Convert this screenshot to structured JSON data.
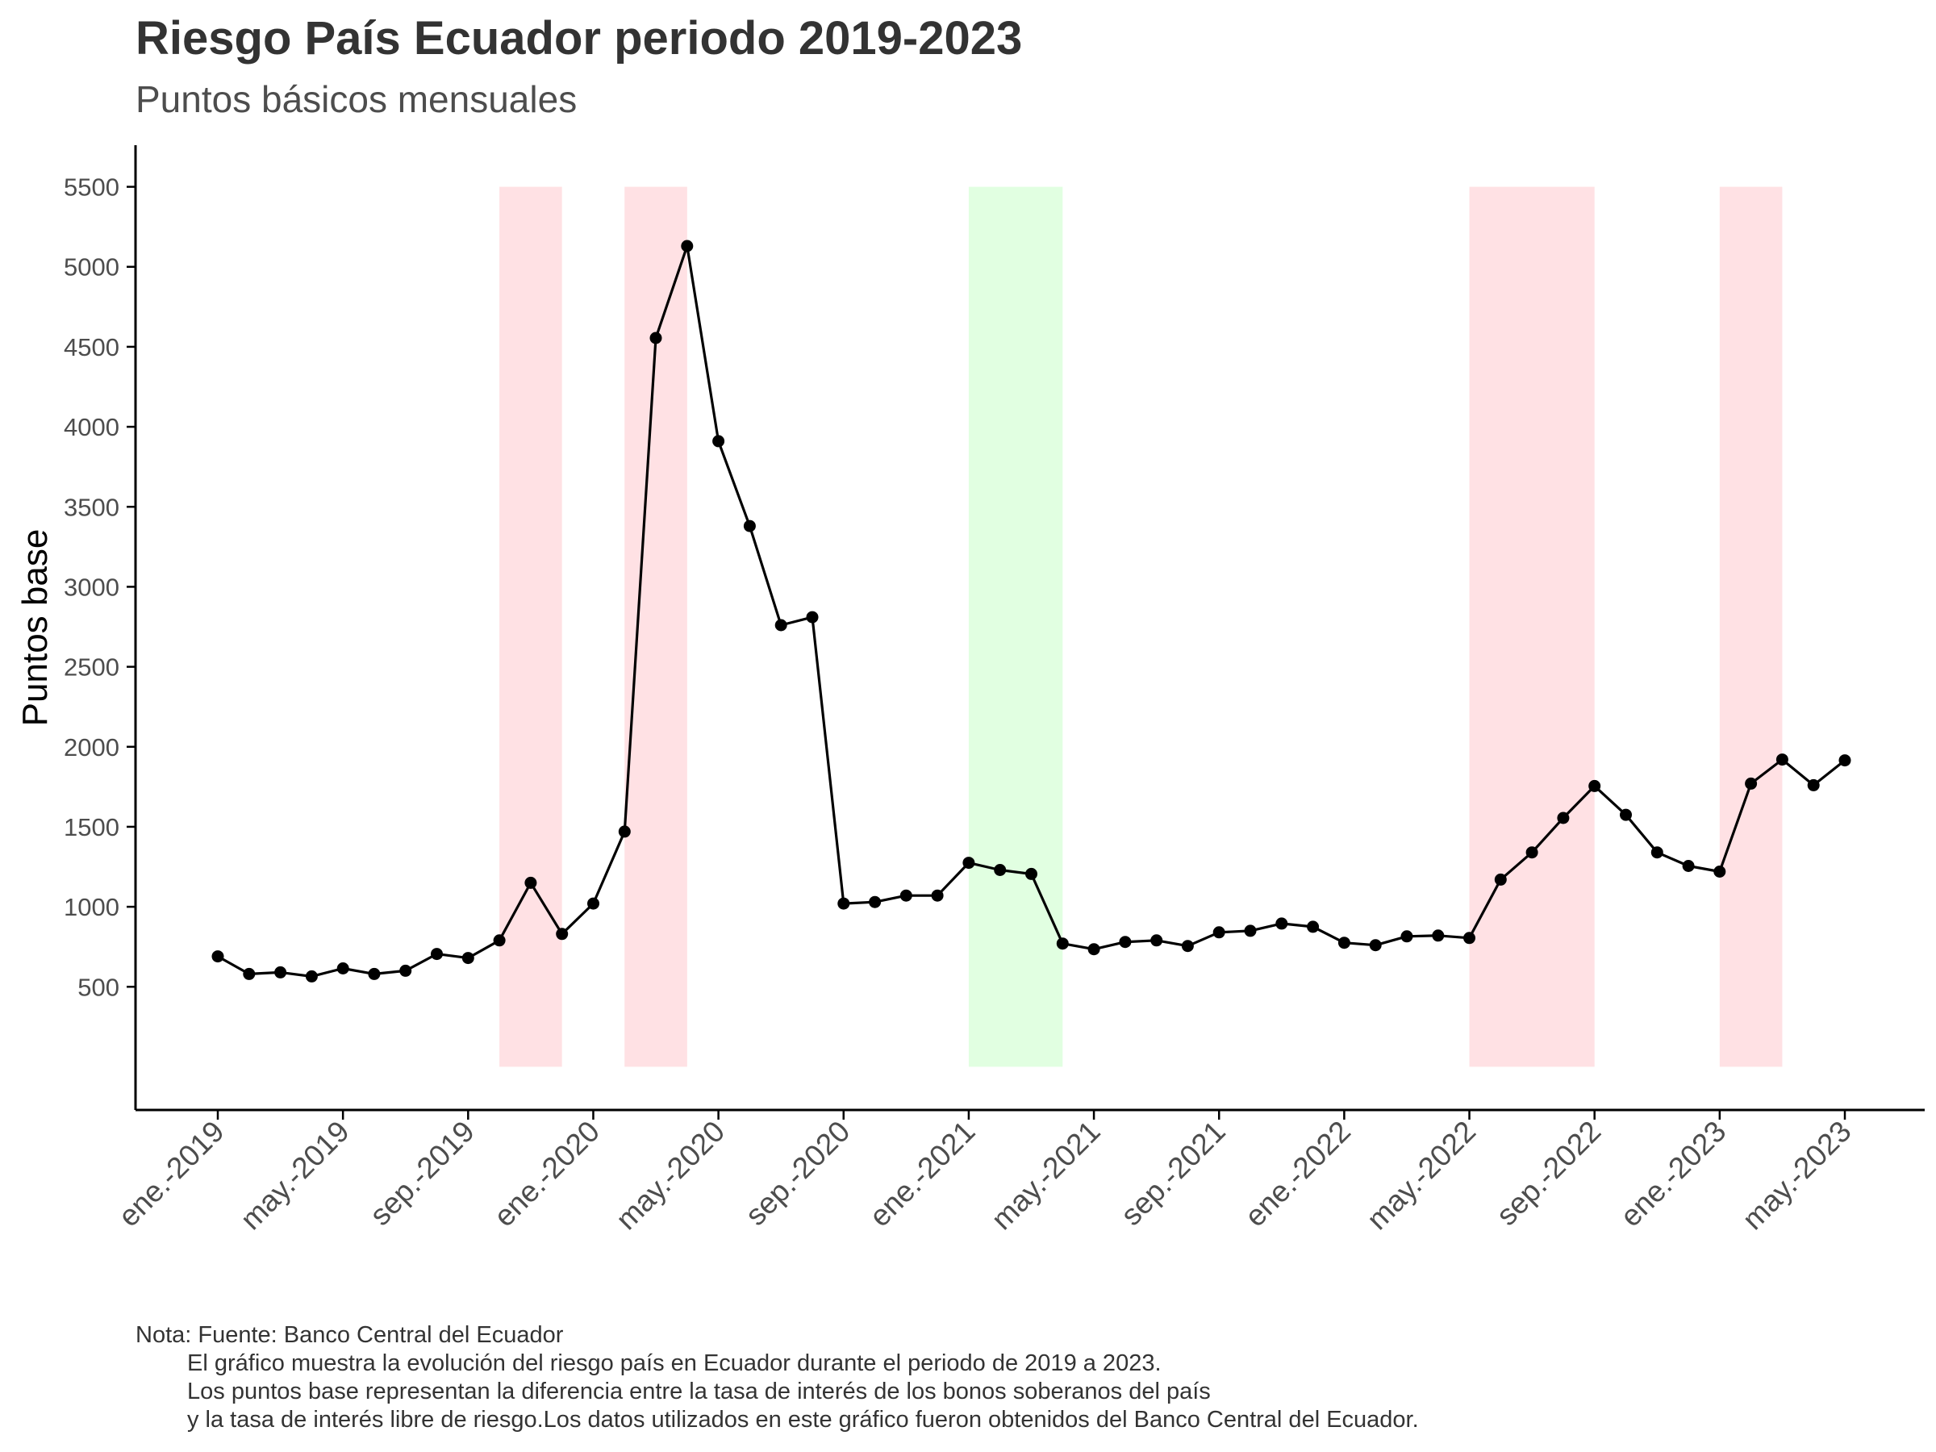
{
  "title": "Riesgo País Ecuador periodo 2019-2023",
  "subtitle": "Puntos básicos mensuales",
  "caption": {
    "line1": "Nota: Fuente: Banco Central del Ecuador",
    "line2": "El gráfico muestra la evolución del riesgo país en Ecuador durante el periodo de 2019 a 2023.",
    "line3": "Los puntos base representan la diferencia entre la tasa de interés de los bonos soberanos del país",
    "line4": "y la tasa de interés libre de riesgo.Los datos utilizados en este gráfico fueron obtenidos del Banco Central del Ecuador."
  },
  "colors": {
    "line": "#000000",
    "point": "#000000",
    "shade_red": "#ffe1e4",
    "shade_green": "#e1ffe1",
    "axis": "#000000",
    "tick_label": "#4d4d4d"
  },
  "chart_data": {
    "type": "line",
    "title": "Riesgo País Ecuador periodo 2019-2023",
    "subtitle": "Puntos básicos mensuales",
    "xlabel": "",
    "ylabel": "Puntos base",
    "ylim": [
      -270,
      5760
    ],
    "yticks": [
      500,
      1000,
      1500,
      2000,
      2500,
      3000,
      3500,
      4000,
      4500,
      5000,
      5500
    ],
    "grid": false,
    "legend": "none",
    "x_ticks": [
      {
        "date": "2019-01",
        "label": "ene.-2019"
      },
      {
        "date": "2019-05",
        "label": "may.-2019"
      },
      {
        "date": "2019-09",
        "label": "sep.-2019"
      },
      {
        "date": "2020-01",
        "label": "ene.-2020"
      },
      {
        "date": "2020-05",
        "label": "may.-2020"
      },
      {
        "date": "2020-09",
        "label": "sep.-2020"
      },
      {
        "date": "2021-01",
        "label": "ene.-2021"
      },
      {
        "date": "2021-05",
        "label": "may.-2021"
      },
      {
        "date": "2021-09",
        "label": "sep.-2021"
      },
      {
        "date": "2022-01",
        "label": "ene.-2022"
      },
      {
        "date": "2022-05",
        "label": "may.-2022"
      },
      {
        "date": "2022-09",
        "label": "sep.-2022"
      },
      {
        "date": "2023-01",
        "label": "ene.-2023"
      },
      {
        "date": "2023-05",
        "label": "may.-2023"
      }
    ],
    "x": [
      "2019-01",
      "2019-02",
      "2019-03",
      "2019-04",
      "2019-05",
      "2019-06",
      "2019-07",
      "2019-08",
      "2019-09",
      "2019-10",
      "2019-11",
      "2019-12",
      "2020-01",
      "2020-02",
      "2020-03",
      "2020-04",
      "2020-05",
      "2020-06",
      "2020-07",
      "2020-08",
      "2020-09",
      "2020-10",
      "2020-11",
      "2020-12",
      "2021-01",
      "2021-02",
      "2021-03",
      "2021-04",
      "2021-05",
      "2021-06",
      "2021-07",
      "2021-08",
      "2021-09",
      "2021-10",
      "2021-11",
      "2021-12",
      "2022-01",
      "2022-02",
      "2022-03",
      "2022-04",
      "2022-05",
      "2022-06",
      "2022-07",
      "2022-08",
      "2022-09",
      "2022-10",
      "2022-11",
      "2022-12",
      "2023-01",
      "2023-02",
      "2023-03",
      "2023-04",
      "2023-05"
    ],
    "values": [
      690,
      580,
      590,
      565,
      615,
      580,
      600,
      705,
      680,
      790,
      1150,
      830,
      1020,
      1470,
      4555,
      5130,
      3910,
      3380,
      2760,
      2810,
      1020,
      1030,
      1070,
      1070,
      1275,
      1230,
      1205,
      770,
      735,
      780,
      790,
      755,
      840,
      850,
      895,
      875,
      775,
      760,
      815,
      820,
      805,
      1170,
      1340,
      1555,
      1755,
      1575,
      1340,
      1255,
      1220,
      1770,
      1920,
      1760,
      1915
    ],
    "shaded_regions": [
      {
        "start": "2019-10",
        "end": "2019-12",
        "color": "red",
        "from": 0,
        "to": 5500
      },
      {
        "start": "2020-02",
        "end": "2020-04",
        "color": "red",
        "from": 0,
        "to": 5500
      },
      {
        "start": "2021-01",
        "end": "2021-04",
        "color": "green",
        "from": 0,
        "to": 5500
      },
      {
        "start": "2022-05",
        "end": "2022-09",
        "color": "red",
        "from": 0,
        "to": 5500
      },
      {
        "start": "2023-01",
        "end": "2023-03",
        "color": "red",
        "from": 0,
        "to": 5500
      }
    ]
  }
}
